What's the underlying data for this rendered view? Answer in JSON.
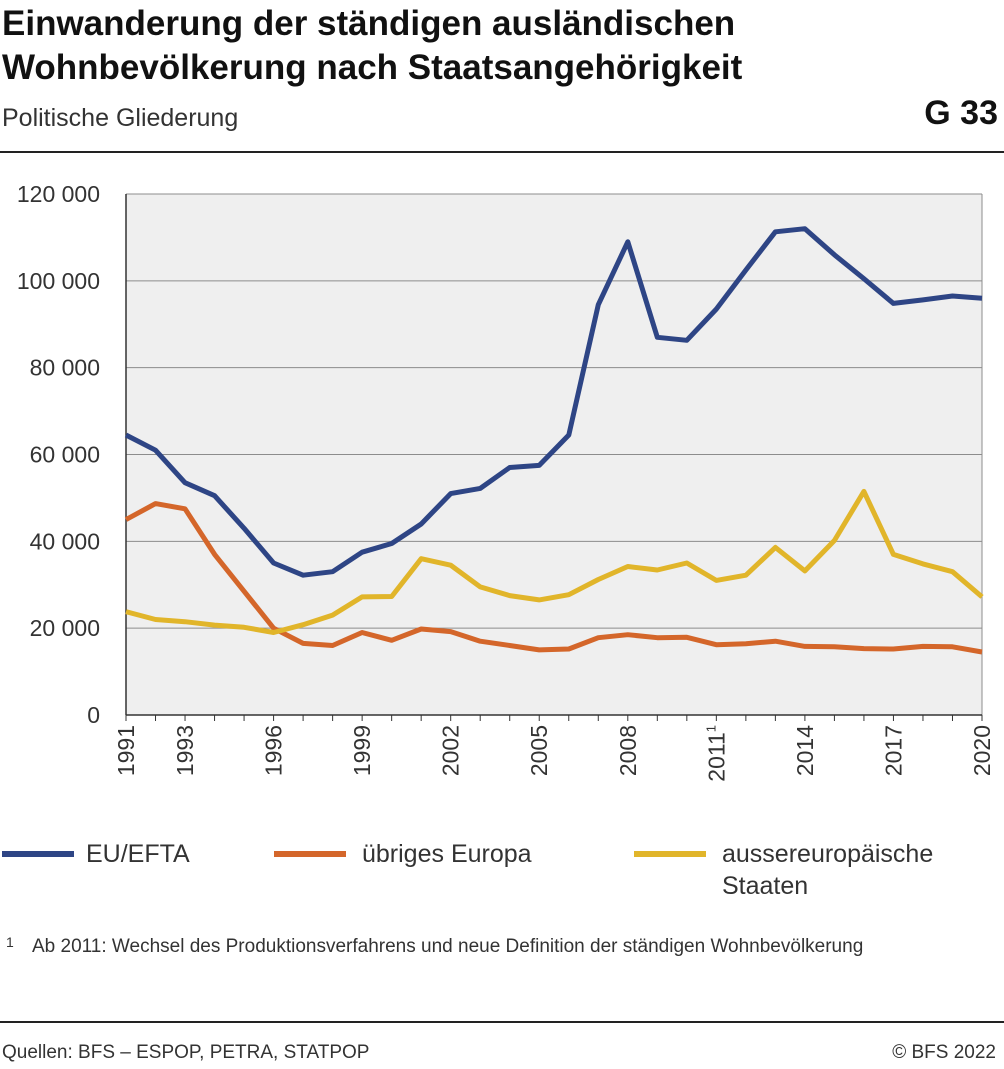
{
  "header": {
    "title_line1": "Einwanderung der ständigen ausländischen",
    "title_line2": "Wohnbevölkerung nach Staatsangehörigkeit",
    "subtitle": "Politische Gliederung",
    "code": "G 33"
  },
  "chart_data": {
    "type": "line",
    "title": "Einwanderung der ständigen ausländischen Wohnbevölkerung nach Staatsangehörigkeit",
    "subtitle": "Politische Gliederung",
    "ylim": [
      0,
      120000
    ],
    "yticks": [
      0,
      20000,
      40000,
      60000,
      80000,
      100000,
      120000
    ],
    "ytick_labels": [
      "0",
      "20 000",
      "40 000",
      "60 000",
      "80 000",
      "100 000",
      "120 000"
    ],
    "xlim": [
      1991,
      2020
    ],
    "xticks": [
      1991,
      1993,
      1996,
      1999,
      2002,
      2005,
      2008,
      2011,
      2014,
      2017,
      2020
    ],
    "xtick_labels": [
      "1991",
      "1993",
      "1996",
      "1999",
      "2002",
      "2005",
      "2008",
      "2011",
      "2014",
      "2017",
      "2020"
    ],
    "xtick_superscripts": {
      "2011": "1"
    },
    "grid": true,
    "legend_position": "bottom",
    "x": [
      1991,
      1992,
      1993,
      1994,
      1995,
      1996,
      1997,
      1998,
      1999,
      2000,
      2001,
      2002,
      2003,
      2004,
      2005,
      2006,
      2007,
      2008,
      2009,
      2010,
      2011,
      2012,
      2013,
      2014,
      2015,
      2016,
      2017,
      2018,
      2019,
      2020
    ],
    "series": [
      {
        "name": "EU/EFTA",
        "color": "#2e4585",
        "values": [
          64500,
          61000,
          53500,
          50500,
          43000,
          35000,
          32200,
          33000,
          37500,
          39500,
          44000,
          51000,
          52200,
          57000,
          57500,
          64500,
          94500,
          109000,
          87000,
          86300,
          93500,
          102500,
          111300,
          112000,
          106000,
          100500,
          94800,
          95600,
          96500,
          96000
        ]
      },
      {
        "name": "übriges Europa",
        "color": "#d4662a",
        "values": [
          45000,
          48700,
          47500,
          37000,
          28500,
          20000,
          16500,
          16000,
          19000,
          17200,
          19800,
          19200,
          17000,
          16000,
          15000,
          15200,
          17800,
          18500,
          17800,
          17900,
          16200,
          16400,
          17000,
          15800,
          15700,
          15300,
          15200,
          15800,
          15700,
          14500
        ]
      },
      {
        "name": "aussereuropäische Staaten",
        "color": "#e1b52a",
        "values": [
          23800,
          22000,
          21500,
          20700,
          20200,
          19000,
          20800,
          23000,
          27200,
          27300,
          36000,
          34500,
          29500,
          27500,
          26500,
          27700,
          31200,
          34200,
          33400,
          35000,
          31000,
          32200,
          38600,
          33200,
          40200,
          51500,
          37000,
          34800,
          33000,
          27200
        ]
      }
    ]
  },
  "legend": {
    "item1": "EU/EFTA",
    "item2": "übriges Europa",
    "item3_line1": "aussereuropäische",
    "item3_line2": "Staaten"
  },
  "footnote": {
    "mark": "1",
    "text": "Ab 2011: Wechsel des Produktionsverfahrens und neue Definition der ständigen Wohnbevölkerung"
  },
  "footer": {
    "sources": "Quellen: BFS – ESPOP, PETRA, STATPOP",
    "copyright": "© BFS 2022"
  }
}
